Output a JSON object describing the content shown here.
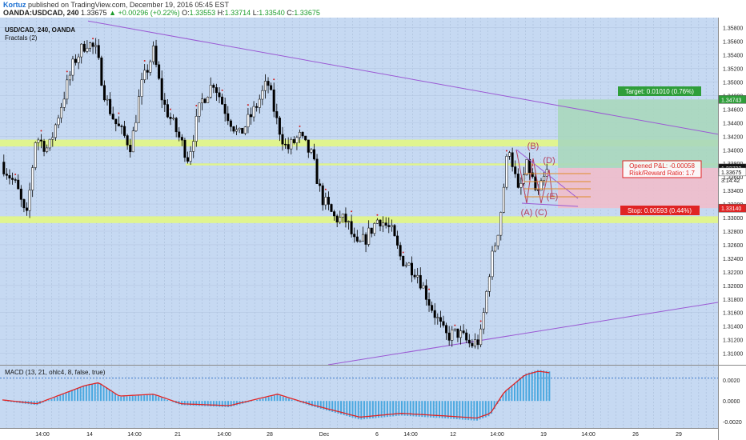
{
  "header": {
    "author": "Kortuz",
    "published": "published on TradingView.com, December 19, 2016 05:45 EST",
    "symbol": "OANDA:USDCAD, 240",
    "last": "1.33675",
    "change": "▲ +0.00296 (+0.22%)",
    "open_label": "O:",
    "open": "1.33553",
    "high_label": "H:",
    "high": "1.33714",
    "low_label": "L:",
    "low": "1.33540",
    "close_label": "C:",
    "close": "1.33675"
  },
  "legend": {
    "symbol": "USD/CAD, 240, OANDA",
    "indicator": "Fractals (2)"
  },
  "macd": {
    "label": "MACD (13, 21, ohlc4, 8, false, true)"
  },
  "labels": {
    "target": "Target: 0.01010 (0.76%)",
    "stop": "Stop: 0.00593 (0.44%)",
    "pnl": "Opened P&L: -0.00058",
    "rr": "Risk/Reward Ratio: 1.7",
    "waves": [
      "(A)",
      "(B)",
      "(C)",
      "(D)",
      "(E)"
    ]
  },
  "price_tags": {
    "target": "1.34743",
    "entry": "1.33733",
    "last": "1.33675",
    "countdown": "3:14:42",
    "stop": "1.33140"
  },
  "colors": {
    "background": "#c6d9f2",
    "up_candle": "#ffffff",
    "down_candle": "#000000",
    "zone": "#e2f589",
    "target_box": "#a9d7bd",
    "stop_box": "#efbccb",
    "trendline": "#9b59d4",
    "macd_hist": "#4aa8e0",
    "macd_line": "#e02424",
    "label_green": "#2f9e3a",
    "label_red": "#e02424",
    "pattern": "#b4405e",
    "pattern_lines": "#e08b2a"
  },
  "chart_data": {
    "type": "candlestick",
    "timeframe": "240",
    "ylim": [
      1.3083,
      1.3595
    ],
    "y_ticks": [
      "1.35800",
      "1.35600",
      "1.35400",
      "1.35200",
      "1.35000",
      "1.34800",
      "1.34600",
      "1.34400",
      "1.34200",
      "1.34000",
      "1.33800",
      "1.33600",
      "1.33400",
      "1.33200",
      "1.33000",
      "1.32800",
      "1.32600",
      "1.32400",
      "1.32200",
      "1.32000",
      "1.31800",
      "1.31600",
      "1.31400",
      "1.31200",
      "1.31000"
    ],
    "x_ticks": [
      "14:00",
      "14",
      "14:00",
      "21",
      "14:00",
      "28",
      "Dec",
      "6",
      "14:00",
      "12",
      "14:00",
      "19",
      "14:00",
      "26",
      "29"
    ],
    "price_path": [
      [
        0,
        1.3382
      ],
      [
        0.025,
        1.3345
      ],
      [
        0.04,
        1.3295
      ],
      [
        0.055,
        1.342
      ],
      [
        0.075,
        1.34
      ],
      [
        0.09,
        1.345
      ],
      [
        0.115,
        1.353
      ],
      [
        0.135,
        1.356
      ],
      [
        0.15,
        1.3545
      ],
      [
        0.165,
        1.3475
      ],
      [
        0.18,
        1.344
      ],
      [
        0.205,
        1.3405
      ],
      [
        0.22,
        1.349
      ],
      [
        0.24,
        1.3545
      ],
      [
        0.255,
        1.347
      ],
      [
        0.275,
        1.343
      ],
      [
        0.295,
        1.3388
      ],
      [
        0.315,
        1.347
      ],
      [
        0.335,
        1.35
      ],
      [
        0.355,
        1.3455
      ],
      [
        0.375,
        1.342
      ],
      [
        0.4,
        1.346
      ],
      [
        0.42,
        1.35
      ],
      [
        0.435,
        1.344
      ],
      [
        0.45,
        1.34
      ],
      [
        0.47,
        1.342
      ],
      [
        0.49,
        1.339
      ],
      [
        0.505,
        1.333
      ],
      [
        0.525,
        1.33
      ],
      [
        0.545,
        1.3295
      ],
      [
        0.56,
        1.3255
      ],
      [
        0.575,
        1.327
      ],
      [
        0.595,
        1.33
      ],
      [
        0.615,
        1.328
      ],
      [
        0.63,
        1.324
      ],
      [
        0.655,
        1.322
      ],
      [
        0.675,
        1.3175
      ],
      [
        0.7,
        1.3125
      ],
      [
        0.72,
        1.313
      ],
      [
        0.74,
        1.3112
      ],
      [
        0.755,
        1.312
      ],
      [
        0.77,
        1.3225
      ],
      [
        0.785,
        1.329
      ],
      [
        0.8,
        1.341
      ],
      [
        0.815,
        1.3335
      ],
      [
        0.83,
        1.338
      ],
      [
        0.845,
        1.333
      ],
      [
        0.86,
        1.3367
      ]
    ],
    "zones": [
      [
        1.3405,
        1.3415
      ],
      [
        1.3292,
        1.3302
      ],
      [
        1.3377,
        1.338
      ]
    ],
    "position": {
      "entry": 1.33733,
      "target": 1.34743,
      "stop": 1.3314
    },
    "macd": {
      "ylim": [
        -0.0026,
        0.0034
      ],
      "y_ticks": [
        "0.0020",
        "0.0000",
        "-0.0020"
      ]
    }
  }
}
